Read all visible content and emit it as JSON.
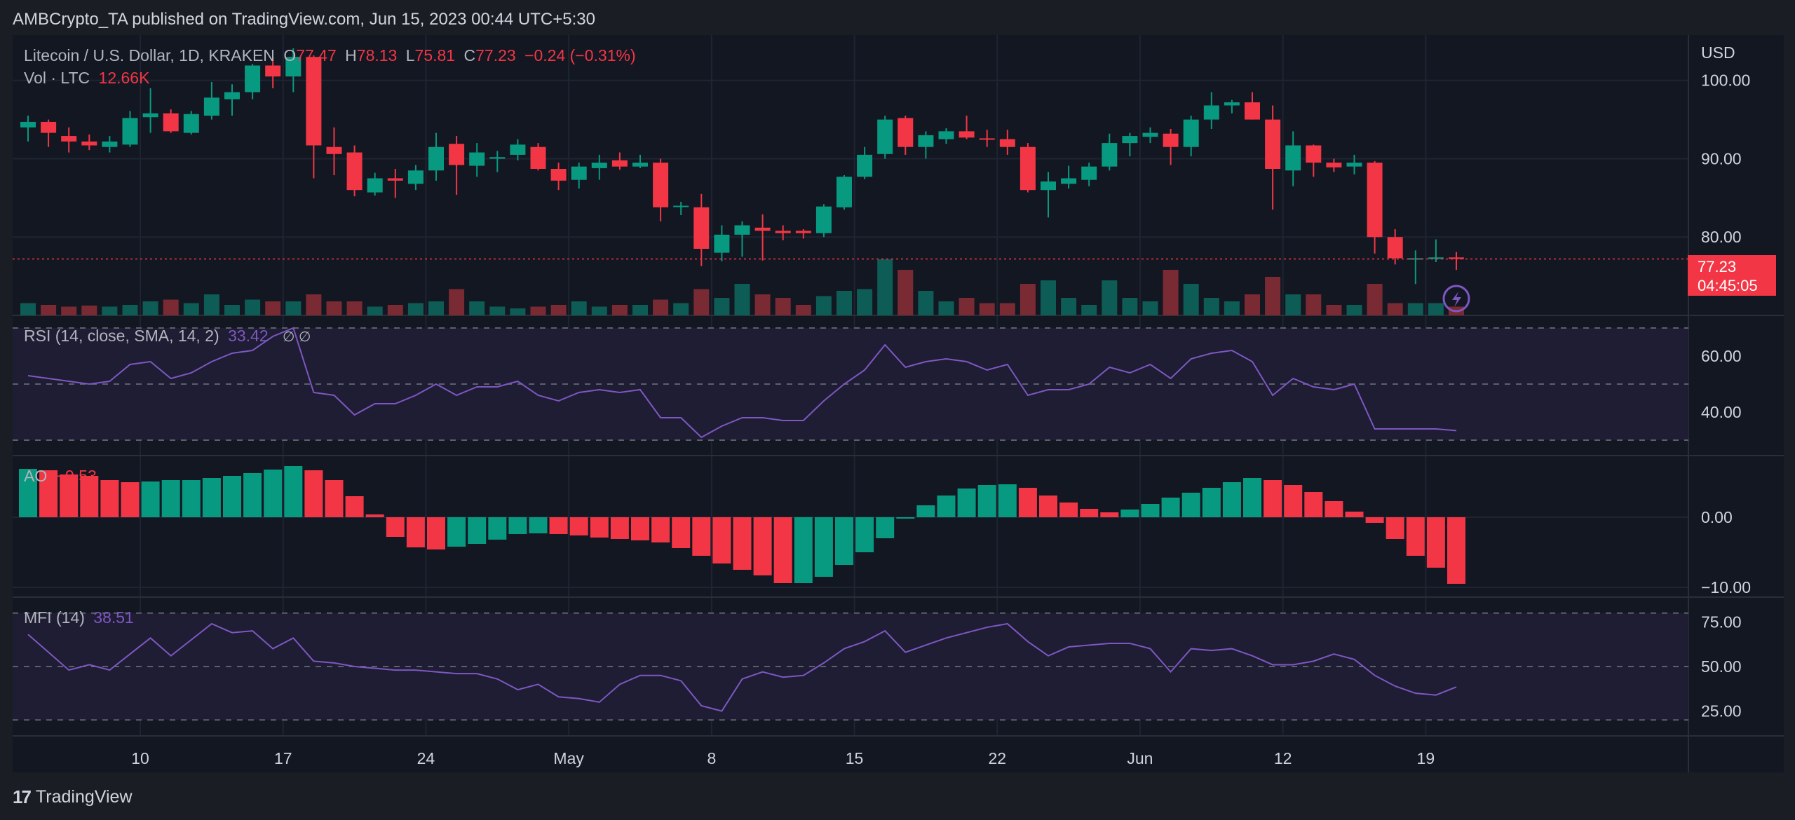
{
  "attribution": "AMBCrypto_TA published on TradingView.com, Jun 15, 2023 00:44 UTC+5:30",
  "brand": "TradingView",
  "main_legend": {
    "symbol": "Litecoin / U.S. Dollar, 1D, KRAKEN",
    "o_label": "O",
    "o_value": "77.47",
    "h_label": "H",
    "h_value": "78.13",
    "l_label": "L",
    "l_value": "75.81",
    "c_label": "C",
    "c_value": "77.23",
    "change": "−0.24 (−0.31%)",
    "vol_label": "Vol · LTC",
    "vol_value": "12.66K"
  },
  "currency": "USD",
  "last_price": "77.23",
  "countdown": "04:45:05",
  "rsi_legend": {
    "label": "RSI (14, close, SMA, 14, 2)",
    "value": "33.42",
    "icons": "∅  ∅"
  },
  "ao_legend": {
    "label": "AO",
    "value": "−9.53"
  },
  "mfi_legend": {
    "label": "MFI (14)",
    "value": "38.51"
  },
  "colors": {
    "up": "#089981",
    "down": "#f23645",
    "indicator": "#7e57c2",
    "background": "#131722"
  },
  "chart_data": [
    {
      "type": "candlestick",
      "title": "Litecoin / U.S. Dollar, 1D, KRAKEN",
      "ylim": [
        70,
        104
      ],
      "yticks": [
        "100.00",
        "90.00",
        "80.00"
      ],
      "xticks": [
        "10",
        "17",
        "24",
        "May",
        "8",
        "15",
        "22",
        "Jun",
        "12",
        "19"
      ],
      "ohlc": [
        [
          94.0,
          95.5,
          92.2,
          94.7
        ],
        [
          94.7,
          95.0,
          91.5,
          93.3
        ],
        [
          92.9,
          94.0,
          90.8,
          92.2
        ],
        [
          92.2,
          93.1,
          91.1,
          91.7
        ],
        [
          91.5,
          92.9,
          90.8,
          92.2
        ],
        [
          91.8,
          96.1,
          91.5,
          95.2
        ],
        [
          95.3,
          99.0,
          93.3,
          95.8
        ],
        [
          95.8,
          96.3,
          93.3,
          93.5
        ],
        [
          93.3,
          96.1,
          93.1,
          95.7
        ],
        [
          95.5,
          99.8,
          95.0,
          97.8
        ],
        [
          97.6,
          99.5,
          95.5,
          98.5
        ],
        [
          98.5,
          102.1,
          97.6,
          101.9
        ],
        [
          101.9,
          102.9,
          99.0,
          100.5
        ],
        [
          100.5,
          104.1,
          98.5,
          103.0
        ],
        [
          103.0,
          103.2,
          87.5,
          91.7
        ],
        [
          91.5,
          94.0,
          87.9,
          90.6
        ],
        [
          90.8,
          91.7,
          85.2,
          86.0
        ],
        [
          85.7,
          88.2,
          85.3,
          87.5
        ],
        [
          87.5,
          88.7,
          85.0,
          87.2
        ],
        [
          86.8,
          89.2,
          86.0,
          88.5
        ],
        [
          88.5,
          93.3,
          87.2,
          91.5
        ],
        [
          91.9,
          92.9,
          85.4,
          89.2
        ],
        [
          89.1,
          92.0,
          87.7,
          90.8
        ],
        [
          90.0,
          91.0,
          88.3,
          90.2
        ],
        [
          90.5,
          92.5,
          89.8,
          91.8
        ],
        [
          91.5,
          92.0,
          88.5,
          88.7
        ],
        [
          88.7,
          89.5,
          86.0,
          87.2
        ],
        [
          87.3,
          89.5,
          86.2,
          89.0
        ],
        [
          88.8,
          90.5,
          87.3,
          89.5
        ],
        [
          89.8,
          90.8,
          88.6,
          89.0
        ],
        [
          89.0,
          90.5,
          88.8,
          89.5
        ],
        [
          89.5,
          90.0,
          82.0,
          83.8
        ],
        [
          84.0,
          84.5,
          82.8,
          84.0
        ],
        [
          83.8,
          85.5,
          76.3,
          78.5
        ],
        [
          78.0,
          81.5,
          76.9,
          80.3
        ],
        [
          80.3,
          82.0,
          77.5,
          81.5
        ],
        [
          81.2,
          82.9,
          77.0,
          80.8
        ],
        [
          80.8,
          81.5,
          79.6,
          80.5
        ],
        [
          80.8,
          81.0,
          79.8,
          80.5
        ],
        [
          80.5,
          84.2,
          80.0,
          83.9
        ],
        [
          83.8,
          87.9,
          83.5,
          87.7
        ],
        [
          87.7,
          91.5,
          87.4,
          90.5
        ],
        [
          90.6,
          95.5,
          90.0,
          95.0
        ],
        [
          95.2,
          95.5,
          90.5,
          91.5
        ],
        [
          91.5,
          93.5,
          90.0,
          93.0
        ],
        [
          92.5,
          93.9,
          91.9,
          93.5
        ],
        [
          93.5,
          95.5,
          92.5,
          92.7
        ],
        [
          92.6,
          93.7,
          91.5,
          92.5
        ],
        [
          92.5,
          93.7,
          90.5,
          91.5
        ],
        [
          91.5,
          92.0,
          85.7,
          86.0
        ],
        [
          86.0,
          88.3,
          82.5,
          87.1
        ],
        [
          86.8,
          89.1,
          86.2,
          87.5
        ],
        [
          87.3,
          89.5,
          86.5,
          89.0
        ],
        [
          89.0,
          93.2,
          88.5,
          92.0
        ],
        [
          92.0,
          93.3,
          90.3,
          92.9
        ],
        [
          92.8,
          94.0,
          92.0,
          93.3
        ],
        [
          93.2,
          93.8,
          89.2,
          91.5
        ],
        [
          91.5,
          95.5,
          90.3,
          95.0
        ],
        [
          95.0,
          98.5,
          93.8,
          96.8
        ],
        [
          96.8,
          97.5,
          95.8,
          97.2
        ],
        [
          97.2,
          98.5,
          95.0,
          95.0
        ],
        [
          95.0,
          96.8,
          83.5,
          88.7
        ],
        [
          88.5,
          93.5,
          86.5,
          91.7
        ],
        [
          91.7,
          91.8,
          87.7,
          89.5
        ],
        [
          89.5,
          90.0,
          88.3,
          88.9
        ],
        [
          89.0,
          90.5,
          88.0,
          89.5
        ],
        [
          89.5,
          89.7,
          77.9,
          80.0
        ],
        [
          80.0,
          81.0,
          76.5,
          77.3
        ],
        [
          77.2,
          78.3,
          74.0,
          77.3
        ],
        [
          77.2,
          79.7,
          76.8,
          77.4
        ],
        [
          77.4,
          78.1,
          75.8,
          77.2
        ]
      ],
      "volume_label": "Vol · LTC"
    },
    {
      "type": "line",
      "title": "RSI (14, close, SMA, 14, 2)",
      "ylim": [
        27,
        72
      ],
      "yticks": [
        "60.00",
        "40.00"
      ],
      "band": [
        30,
        70
      ],
      "values": [
        53,
        52,
        51,
        50,
        51,
        57,
        58,
        52,
        54,
        58,
        61,
        62,
        67,
        70,
        47,
        46,
        39,
        43,
        43,
        46,
        50,
        46,
        49,
        49,
        51,
        46,
        44,
        47,
        48,
        47,
        48,
        38,
        38,
        31,
        35,
        38,
        38,
        37,
        37,
        44,
        50,
        55,
        64,
        56,
        58,
        59,
        58,
        55,
        57,
        46,
        48,
        48,
        50,
        56,
        54,
        57,
        52,
        59,
        61,
        62,
        58,
        46,
        52,
        49,
        48,
        50,
        34,
        34,
        34,
        34,
        33.4
      ]
    },
    {
      "type": "bar",
      "title": "AO",
      "ylim": [
        -11,
        8
      ],
      "yticks": [
        "0.00",
        "−10.00"
      ],
      "values": [
        6.9,
        6.7,
        6.1,
        5.9,
        5.3,
        5.0,
        5.1,
        5.3,
        5.3,
        5.6,
        5.9,
        6.3,
        6.8,
        7.3,
        6.7,
        5.3,
        3.0,
        0.4,
        -2.8,
        -4.3,
        -4.6,
        -4.2,
        -3.8,
        -3.2,
        -2.4,
        -2.3,
        -2.4,
        -2.6,
        -2.9,
        -3.1,
        -3.3,
        -3.6,
        -4.4,
        -5.5,
        -6.6,
        -7.5,
        -8.3,
        -9.4,
        -9.4,
        -8.5,
        -6.8,
        -5.0,
        -3.0,
        -0.1,
        1.7,
        3.1,
        4.1,
        4.6,
        4.7,
        4.2,
        3.1,
        2.1,
        1.2,
        0.7,
        1.1,
        1.9,
        2.8,
        3.5,
        4.2,
        5.0,
        5.6,
        5.3,
        4.6,
        3.6,
        2.3,
        0.8,
        -0.8,
        -3.1,
        -5.5,
        -7.2,
        -9.5
      ]
    },
    {
      "type": "line",
      "title": "MFI (14)",
      "ylim": [
        15,
        85
      ],
      "yticks": [
        "75.00",
        "50.00",
        "25.00"
      ],
      "band": [
        20,
        80
      ],
      "values": [
        68,
        58,
        48,
        51,
        48,
        57,
        66,
        56,
        65,
        74,
        69,
        70,
        60,
        66,
        53,
        52,
        50,
        49,
        48,
        48,
        47,
        46,
        46,
        43,
        37,
        40,
        33,
        32,
        30,
        40,
        45,
        45,
        42,
        28,
        25,
        43,
        47,
        44,
        45,
        52,
        60,
        64,
        70,
        58,
        62,
        66,
        69,
        72,
        74,
        64,
        56,
        61,
        62,
        63,
        63,
        60,
        47,
        60,
        59,
        60,
        56,
        51,
        51,
        53,
        57,
        54,
        45,
        39,
        35,
        34,
        38.5
      ]
    }
  ]
}
